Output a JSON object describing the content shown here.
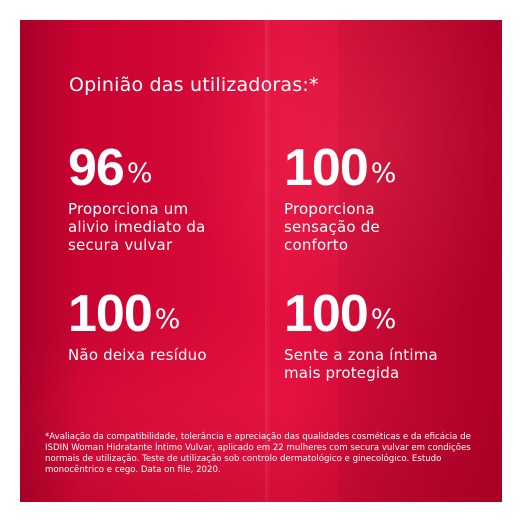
{
  "colors": {
    "background": "#d30836",
    "text": "#ffffff"
  },
  "headline": "Opinião das utilizadoras:*",
  "stats": [
    {
      "value": "96",
      "unit": "%",
      "description": "Proporciona um\nalivio imediato da\nsecura vulvar"
    },
    {
      "value": "100",
      "unit": "%",
      "description": "Proporciona\nsensação de\nconforto"
    },
    {
      "value": "100",
      "unit": "%",
      "description": "Não deixa resíduo"
    },
    {
      "value": "100",
      "unit": "%",
      "description": "Sente a zona íntima\nmais protegida"
    }
  ],
  "footnote": "*Avaliação da compatibilidade, tolerância e apreciação das qualidades cosméticas e da eficácia de ISDIN Woman Hidratante Íntimo Vulvar, aplicado em 22 mulheres com secura vulvar em condições normais de utilização. Teste de utilização sob controlo dermatológico e ginecológico. Estudo monocêntrico e cego. Data on file, 2020."
}
